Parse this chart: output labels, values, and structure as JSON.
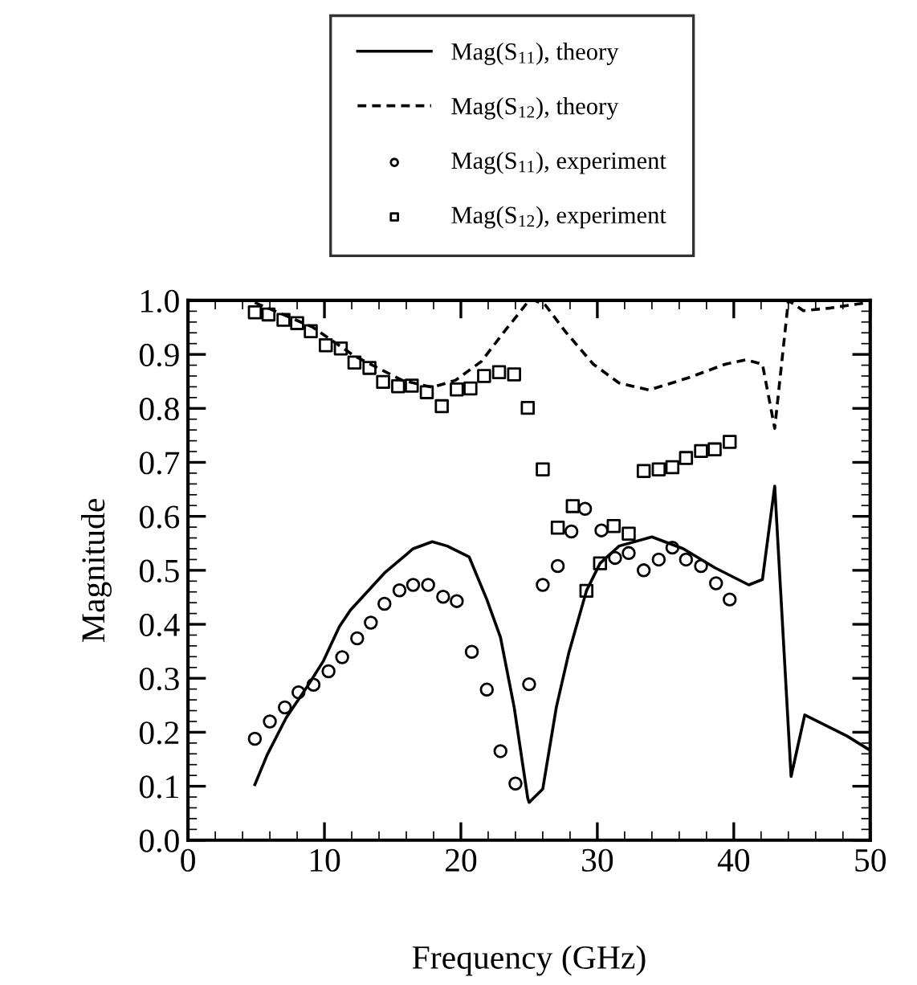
{
  "chart_data": {
    "type": "line",
    "xlabel": "Frequency (GHz)",
    "ylabel": "Magnitude",
    "xlim": [
      0,
      50
    ],
    "ylim": [
      0,
      1.0
    ],
    "xticks": [
      0,
      10,
      20,
      30,
      40,
      50
    ],
    "yticks": [
      {
        "value": 0,
        "label": "0.0"
      },
      0.1,
      0.2,
      0.3,
      0.4,
      0.5,
      0.6,
      0.7,
      0.8,
      0.9,
      {
        "value": 1,
        "label": "1.0"
      }
    ],
    "grid": false,
    "legend": "top",
    "series": [
      {
        "name": "Mag(S$_{11}$), theory",
        "line_style": "solid",
        "marker": "none",
        "color": "#000000",
        "x": [
          4.9,
          5.8,
          7.2,
          8.8,
          9.9,
          11.1,
          11.9,
          14.4,
          16.5,
          17.9,
          19.0,
          20.6,
          21.9,
          22.9,
          23.9,
          24.9,
          25.0,
          26.0,
          27.0,
          27.9,
          29.2,
          30.2,
          31.6,
          34.0,
          36.3,
          38.6,
          41.1,
          42.1,
          43.0,
          44.2,
          45.2,
          48.3,
          49.9
        ],
        "values": [
          0.103,
          0.158,
          0.227,
          0.287,
          0.331,
          0.396,
          0.426,
          0.495,
          0.54,
          0.553,
          0.545,
          0.525,
          0.446,
          0.376,
          0.247,
          0.078,
          0.07,
          0.095,
          0.247,
          0.346,
          0.462,
          0.513,
          0.545,
          0.562,
          0.54,
          0.505,
          0.473,
          0.483,
          0.656,
          0.118,
          0.232,
          0.193,
          0.168
        ]
      },
      {
        "name": "Mag(S$_{12}$), theory",
        "line_style": "dashed",
        "marker": "none",
        "color": "#000000",
        "x": [
          4.9,
          9.1,
          12.2,
          15.7,
          17.9,
          19.6,
          21.5,
          23.3,
          25.0,
          25.4,
          26.2,
          27.7,
          29.7,
          31.6,
          33.8,
          36.7,
          39.4,
          40.9,
          42.1,
          43.0,
          44.0,
          45.1,
          47.1,
          49.8
        ],
        "values": [
          0.996,
          0.951,
          0.897,
          0.852,
          0.839,
          0.852,
          0.887,
          0.946,
          1.0,
          1.0,
          0.991,
          0.941,
          0.882,
          0.847,
          0.834,
          0.857,
          0.882,
          0.89,
          0.882,
          0.763,
          1.0,
          0.981,
          0.986,
          0.996
        ]
      },
      {
        "name": "Mag(S$_{11}$), experiment",
        "type": "scatter",
        "marker": "circle",
        "color": "#000000",
        "x": [
          4.9,
          6.0,
          7.1,
          8.1,
          9.2,
          10.3,
          11.3,
          12.4,
          13.4,
          14.4,
          15.5,
          16.5,
          17.6,
          18.7,
          19.7,
          20.8,
          21.9,
          22.9,
          24.0,
          25.0,
          26.0,
          27.1,
          28.1,
          29.1,
          30.3,
          31.3,
          32.3,
          33.4,
          34.5,
          35.5,
          36.5,
          37.6,
          38.7,
          39.7
        ],
        "values": [
          0.188,
          0.22,
          0.246,
          0.274,
          0.288,
          0.313,
          0.339,
          0.374,
          0.403,
          0.438,
          0.463,
          0.473,
          0.473,
          0.451,
          0.443,
          0.349,
          0.279,
          0.165,
          0.105,
          0.289,
          0.473,
          0.508,
          0.572,
          0.614,
          0.574,
          0.523,
          0.532,
          0.5,
          0.52,
          0.542,
          0.52,
          0.508,
          0.476,
          0.446
        ]
      },
      {
        "name": "Mag(S$_{12}$), experiment",
        "type": "scatter",
        "marker": "square",
        "color": "#000000",
        "x": [
          4.9,
          5.9,
          7.0,
          8.0,
          9.0,
          10.1,
          11.2,
          12.2,
          13.3,
          14.3,
          15.4,
          16.4,
          17.5,
          18.6,
          19.7,
          20.7,
          21.7,
          22.8,
          23.9,
          24.9,
          26.0,
          27.1,
          28.2,
          29.2,
          30.2,
          31.2,
          32.3,
          33.4,
          34.5,
          35.5,
          36.5,
          37.6,
          38.6,
          39.7
        ],
        "values": [
          0.978,
          0.974,
          0.964,
          0.958,
          0.943,
          0.917,
          0.911,
          0.885,
          0.875,
          0.849,
          0.841,
          0.842,
          0.83,
          0.804,
          0.835,
          0.837,
          0.86,
          0.867,
          0.863,
          0.801,
          0.687,
          0.579,
          0.619,
          0.462,
          0.513,
          0.582,
          0.568,
          0.684,
          0.687,
          0.691,
          0.708,
          0.721,
          0.724,
          0.738
        ]
      }
    ]
  }
}
